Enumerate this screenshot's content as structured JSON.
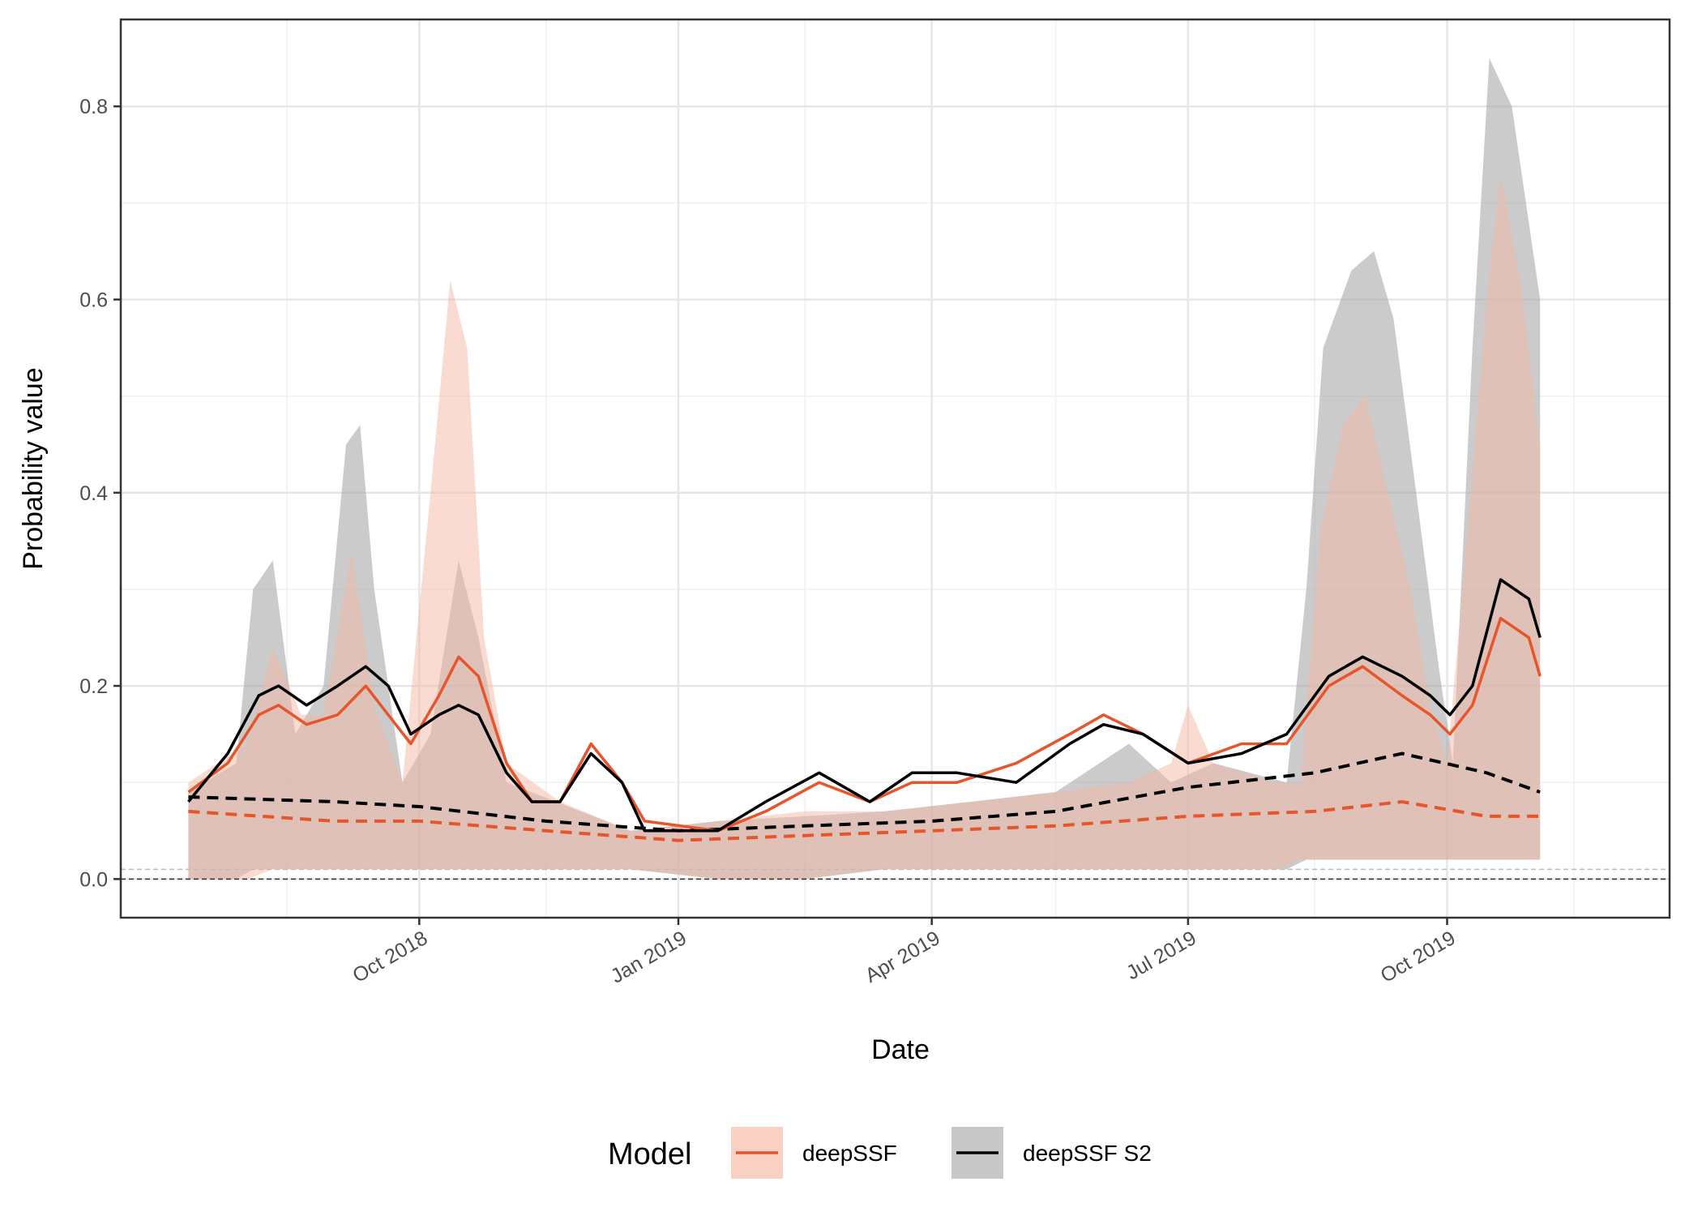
{
  "chart_data": {
    "type": "line",
    "title": "",
    "xlabel": "Date",
    "ylabel": "Probability value",
    "x_axis": {
      "type": "date",
      "range": [
        "2018-06-17",
        "2019-12-19"
      ],
      "ticks": [
        {
          "date": "2018-10-01",
          "label": "Oct 2018"
        },
        {
          "date": "2019-01-01",
          "label": "Jan 2019"
        },
        {
          "date": "2019-04-01",
          "label": "Apr 2019"
        },
        {
          "date": "2019-07-01",
          "label": "Jul 2019"
        },
        {
          "date": "2019-10-01",
          "label": "Oct 2019"
        }
      ],
      "minor_ticks": [
        "2018-08-15",
        "2018-11-15",
        "2019-02-15",
        "2019-05-15",
        "2019-08-15",
        "2019-11-15"
      ]
    },
    "y_axis": {
      "range": [
        -0.04,
        0.89
      ],
      "ticks": [
        0.0,
        0.2,
        0.4,
        0.6,
        0.8
      ],
      "tick_labels": [
        "0.0",
        "0.2",
        "0.4",
        "0.6",
        "0.8"
      ],
      "minor_ticks": [
        0.1,
        0.3,
        0.5,
        0.7
      ]
    },
    "grid": true,
    "reference_lines": [
      {
        "y": 0.0,
        "style": "dashed",
        "color": "#333333"
      },
      {
        "y": 0.01,
        "style": "dashed",
        "color": "#bbbbbb"
      }
    ],
    "legend": {
      "position": "bottom",
      "title": "Model",
      "entries": [
        {
          "label": "deepSSF",
          "line_color": "#e6552c",
          "fill_color": "#f8d0c4"
        },
        {
          "label": "deepSSF S2",
          "line_color": "#000000",
          "fill_color": "#c8c8c8"
        }
      ]
    },
    "series": [
      {
        "name": "deepSSF",
        "color": "#e6552c",
        "band_color": "#f4b8a6",
        "band": [
          {
            "x": "2018-07-11",
            "lo": 0.0,
            "hi": 0.1
          },
          {
            "x": "2018-08-01",
            "lo": 0.0,
            "hi": 0.14
          },
          {
            "x": "2018-08-10",
            "lo": 0.01,
            "hi": 0.24
          },
          {
            "x": "2018-08-20",
            "lo": 0.01,
            "hi": 0.17
          },
          {
            "x": "2018-08-28",
            "lo": 0.01,
            "hi": 0.17
          },
          {
            "x": "2018-09-07",
            "lo": 0.01,
            "hi": 0.34
          },
          {
            "x": "2018-09-15",
            "lo": 0.01,
            "hi": 0.18
          },
          {
            "x": "2018-09-25",
            "lo": 0.01,
            "hi": 0.1
          },
          {
            "x": "2018-10-05",
            "lo": 0.01,
            "hi": 0.4
          },
          {
            "x": "2018-10-12",
            "lo": 0.01,
            "hi": 0.62
          },
          {
            "x": "2018-10-18",
            "lo": 0.01,
            "hi": 0.55
          },
          {
            "x": "2018-10-24",
            "lo": 0.01,
            "hi": 0.25
          },
          {
            "x": "2018-11-01",
            "lo": 0.01,
            "hi": 0.12
          },
          {
            "x": "2018-11-20",
            "lo": 0.01,
            "hi": 0.08
          },
          {
            "x": "2018-12-15",
            "lo": 0.01,
            "hi": 0.05
          },
          {
            "x": "2019-01-15",
            "lo": 0.0,
            "hi": 0.06
          },
          {
            "x": "2019-02-15",
            "lo": 0.0,
            "hi": 0.07
          },
          {
            "x": "2019-03-15",
            "lo": 0.01,
            "hi": 0.07
          },
          {
            "x": "2019-04-15",
            "lo": 0.01,
            "hi": 0.08
          },
          {
            "x": "2019-05-15",
            "lo": 0.01,
            "hi": 0.09
          },
          {
            "x": "2019-06-10",
            "lo": 0.01,
            "hi": 0.1
          },
          {
            "x": "2019-06-25",
            "lo": 0.01,
            "hi": 0.12
          },
          {
            "x": "2019-07-01",
            "lo": 0.01,
            "hi": 0.18
          },
          {
            "x": "2019-07-10",
            "lo": 0.01,
            "hi": 0.12
          },
          {
            "x": "2019-08-01",
            "lo": 0.01,
            "hi": 0.1
          },
          {
            "x": "2019-08-10",
            "lo": 0.02,
            "hi": 0.1
          },
          {
            "x": "2019-08-17",
            "lo": 0.02,
            "hi": 0.36
          },
          {
            "x": "2019-08-25",
            "lo": 0.02,
            "hi": 0.47
          },
          {
            "x": "2019-09-02",
            "lo": 0.02,
            "hi": 0.5
          },
          {
            "x": "2019-09-10",
            "lo": 0.02,
            "hi": 0.4
          },
          {
            "x": "2019-09-18",
            "lo": 0.02,
            "hi": 0.3
          },
          {
            "x": "2019-09-25",
            "lo": 0.02,
            "hi": 0.18
          },
          {
            "x": "2019-10-01",
            "lo": 0.02,
            "hi": 0.12
          },
          {
            "x": "2019-10-08",
            "lo": 0.02,
            "hi": 0.35
          },
          {
            "x": "2019-10-15",
            "lo": 0.02,
            "hi": 0.6
          },
          {
            "x": "2019-10-20",
            "lo": 0.02,
            "hi": 0.73
          },
          {
            "x": "2019-10-27",
            "lo": 0.02,
            "hi": 0.62
          },
          {
            "x": "2019-11-03",
            "lo": 0.02,
            "hi": 0.45
          }
        ],
        "highlight_line": [
          {
            "x": "2018-07-11",
            "y": 0.09
          },
          {
            "x": "2018-07-25",
            "y": 0.12
          },
          {
            "x": "2018-08-05",
            "y": 0.17
          },
          {
            "x": "2018-08-12",
            "y": 0.18
          },
          {
            "x": "2018-08-22",
            "y": 0.16
          },
          {
            "x": "2018-09-02",
            "y": 0.17
          },
          {
            "x": "2018-09-12",
            "y": 0.2
          },
          {
            "x": "2018-09-20",
            "y": 0.17
          },
          {
            "x": "2018-09-28",
            "y": 0.14
          },
          {
            "x": "2018-10-08",
            "y": 0.19
          },
          {
            "x": "2018-10-15",
            "y": 0.23
          },
          {
            "x": "2018-10-22",
            "y": 0.21
          },
          {
            "x": "2018-11-01",
            "y": 0.12
          },
          {
            "x": "2018-11-10",
            "y": 0.08
          },
          {
            "x": "2018-11-20",
            "y": 0.08
          },
          {
            "x": "2018-12-01",
            "y": 0.14
          },
          {
            "x": "2018-12-12",
            "y": 0.1
          },
          {
            "x": "2018-12-20",
            "y": 0.06
          },
          {
            "x": "2019-01-15",
            "y": 0.05
          },
          {
            "x": "2019-02-01",
            "y": 0.07
          },
          {
            "x": "2019-02-20",
            "y": 0.1
          },
          {
            "x": "2019-03-10",
            "y": 0.08
          },
          {
            "x": "2019-03-25",
            "y": 0.1
          },
          {
            "x": "2019-04-10",
            "y": 0.1
          },
          {
            "x": "2019-05-01",
            "y": 0.12
          },
          {
            "x": "2019-05-20",
            "y": 0.15
          },
          {
            "x": "2019-06-01",
            "y": 0.17
          },
          {
            "x": "2019-06-15",
            "y": 0.15
          },
          {
            "x": "2019-07-01",
            "y": 0.12
          },
          {
            "x": "2019-07-20",
            "y": 0.14
          },
          {
            "x": "2019-08-05",
            "y": 0.14
          },
          {
            "x": "2019-08-20",
            "y": 0.2
          },
          {
            "x": "2019-09-01",
            "y": 0.22
          },
          {
            "x": "2019-09-15",
            "y": 0.19
          },
          {
            "x": "2019-09-25",
            "y": 0.17
          },
          {
            "x": "2019-10-02",
            "y": 0.15
          },
          {
            "x": "2019-10-10",
            "y": 0.18
          },
          {
            "x": "2019-10-20",
            "y": 0.27
          },
          {
            "x": "2019-10-30",
            "y": 0.25
          },
          {
            "x": "2019-11-03",
            "y": 0.21
          }
        ],
        "mean_line": [
          {
            "x": "2018-07-11",
            "y": 0.07
          },
          {
            "x": "2018-09-01",
            "y": 0.06
          },
          {
            "x": "2018-10-01",
            "y": 0.06
          },
          {
            "x": "2018-11-15",
            "y": 0.05
          },
          {
            "x": "2019-01-01",
            "y": 0.04
          },
          {
            "x": "2019-02-15",
            "y": 0.045
          },
          {
            "x": "2019-04-01",
            "y": 0.05
          },
          {
            "x": "2019-05-15",
            "y": 0.055
          },
          {
            "x": "2019-07-01",
            "y": 0.065
          },
          {
            "x": "2019-08-15",
            "y": 0.07
          },
          {
            "x": "2019-09-15",
            "y": 0.08
          },
          {
            "x": "2019-10-15",
            "y": 0.065
          },
          {
            "x": "2019-11-03",
            "y": 0.065
          }
        ]
      },
      {
        "name": "deepSSF S2",
        "color": "#000000",
        "band_color": "#a9a9a9",
        "band": [
          {
            "x": "2018-07-11",
            "lo": 0.0,
            "hi": 0.09
          },
          {
            "x": "2018-07-28",
            "lo": 0.0,
            "hi": 0.12
          },
          {
            "x": "2018-08-03",
            "lo": 0.01,
            "hi": 0.3
          },
          {
            "x": "2018-08-10",
            "lo": 0.01,
            "hi": 0.33
          },
          {
            "x": "2018-08-18",
            "lo": 0.01,
            "hi": 0.15
          },
          {
            "x": "2018-08-28",
            "lo": 0.01,
            "hi": 0.2
          },
          {
            "x": "2018-09-05",
            "lo": 0.01,
            "hi": 0.45
          },
          {
            "x": "2018-09-10",
            "lo": 0.01,
            "hi": 0.47
          },
          {
            "x": "2018-09-15",
            "lo": 0.01,
            "hi": 0.3
          },
          {
            "x": "2018-09-25",
            "lo": 0.01,
            "hi": 0.1
          },
          {
            "x": "2018-10-05",
            "lo": 0.01,
            "hi": 0.15
          },
          {
            "x": "2018-10-15",
            "lo": 0.01,
            "hi": 0.33
          },
          {
            "x": "2018-10-22",
            "lo": 0.01,
            "hi": 0.25
          },
          {
            "x": "2018-11-01",
            "lo": 0.01,
            "hi": 0.1
          },
          {
            "x": "2018-12-15",
            "lo": 0.01,
            "hi": 0.05
          },
          {
            "x": "2019-01-15",
            "lo": 0.0,
            "hi": 0.06
          },
          {
            "x": "2019-02-15",
            "lo": 0.0,
            "hi": 0.065
          },
          {
            "x": "2019-03-15",
            "lo": 0.01,
            "hi": 0.07
          },
          {
            "x": "2019-04-15",
            "lo": 0.01,
            "hi": 0.08
          },
          {
            "x": "2019-05-15",
            "lo": 0.01,
            "hi": 0.09
          },
          {
            "x": "2019-06-10",
            "lo": 0.01,
            "hi": 0.14
          },
          {
            "x": "2019-06-25",
            "lo": 0.01,
            "hi": 0.1
          },
          {
            "x": "2019-07-10",
            "lo": 0.01,
            "hi": 0.12
          },
          {
            "x": "2019-08-05",
            "lo": 0.01,
            "hi": 0.1
          },
          {
            "x": "2019-08-12",
            "lo": 0.02,
            "hi": 0.3
          },
          {
            "x": "2019-08-18",
            "lo": 0.02,
            "hi": 0.55
          },
          {
            "x": "2019-08-28",
            "lo": 0.02,
            "hi": 0.63
          },
          {
            "x": "2019-09-05",
            "lo": 0.02,
            "hi": 0.65
          },
          {
            "x": "2019-09-12",
            "lo": 0.02,
            "hi": 0.58
          },
          {
            "x": "2019-09-20",
            "lo": 0.02,
            "hi": 0.4
          },
          {
            "x": "2019-09-28",
            "lo": 0.02,
            "hi": 0.22
          },
          {
            "x": "2019-10-03",
            "lo": 0.02,
            "hi": 0.12
          },
          {
            "x": "2019-10-10",
            "lo": 0.02,
            "hi": 0.55
          },
          {
            "x": "2019-10-16",
            "lo": 0.02,
            "hi": 0.85
          },
          {
            "x": "2019-10-24",
            "lo": 0.02,
            "hi": 0.8
          },
          {
            "x": "2019-11-03",
            "lo": 0.02,
            "hi": 0.6
          }
        ],
        "highlight_line": [
          {
            "x": "2018-07-11",
            "y": 0.08
          },
          {
            "x": "2018-07-25",
            "y": 0.13
          },
          {
            "x": "2018-08-05",
            "y": 0.19
          },
          {
            "x": "2018-08-12",
            "y": 0.2
          },
          {
            "x": "2018-08-22",
            "y": 0.18
          },
          {
            "x": "2018-09-02",
            "y": 0.2
          },
          {
            "x": "2018-09-12",
            "y": 0.22
          },
          {
            "x": "2018-09-20",
            "y": 0.2
          },
          {
            "x": "2018-09-28",
            "y": 0.15
          },
          {
            "x": "2018-10-08",
            "y": 0.17
          },
          {
            "x": "2018-10-15",
            "y": 0.18
          },
          {
            "x": "2018-10-22",
            "y": 0.17
          },
          {
            "x": "2018-11-01",
            "y": 0.11
          },
          {
            "x": "2018-11-10",
            "y": 0.08
          },
          {
            "x": "2018-11-20",
            "y": 0.08
          },
          {
            "x": "2018-12-01",
            "y": 0.13
          },
          {
            "x": "2018-12-12",
            "y": 0.1
          },
          {
            "x": "2018-12-20",
            "y": 0.05
          },
          {
            "x": "2019-01-15",
            "y": 0.05
          },
          {
            "x": "2019-02-01",
            "y": 0.08
          },
          {
            "x": "2019-02-20",
            "y": 0.11
          },
          {
            "x": "2019-03-10",
            "y": 0.08
          },
          {
            "x": "2019-03-25",
            "y": 0.11
          },
          {
            "x": "2019-04-10",
            "y": 0.11
          },
          {
            "x": "2019-05-01",
            "y": 0.1
          },
          {
            "x": "2019-05-20",
            "y": 0.14
          },
          {
            "x": "2019-06-01",
            "y": 0.16
          },
          {
            "x": "2019-06-15",
            "y": 0.15
          },
          {
            "x": "2019-07-01",
            "y": 0.12
          },
          {
            "x": "2019-07-20",
            "y": 0.13
          },
          {
            "x": "2019-08-05",
            "y": 0.15
          },
          {
            "x": "2019-08-20",
            "y": 0.21
          },
          {
            "x": "2019-09-01",
            "y": 0.23
          },
          {
            "x": "2019-09-15",
            "y": 0.21
          },
          {
            "x": "2019-09-25",
            "y": 0.19
          },
          {
            "x": "2019-10-02",
            "y": 0.17
          },
          {
            "x": "2019-10-10",
            "y": 0.2
          },
          {
            "x": "2019-10-20",
            "y": 0.31
          },
          {
            "x": "2019-10-30",
            "y": 0.29
          },
          {
            "x": "2019-11-03",
            "y": 0.25
          }
        ],
        "mean_line": [
          {
            "x": "2018-07-11",
            "y": 0.085
          },
          {
            "x": "2018-09-01",
            "y": 0.08
          },
          {
            "x": "2018-10-01",
            "y": 0.075
          },
          {
            "x": "2018-11-15",
            "y": 0.06
          },
          {
            "x": "2019-01-01",
            "y": 0.05
          },
          {
            "x": "2019-02-15",
            "y": 0.055
          },
          {
            "x": "2019-04-01",
            "y": 0.06
          },
          {
            "x": "2019-05-15",
            "y": 0.07
          },
          {
            "x": "2019-07-01",
            "y": 0.095
          },
          {
            "x": "2019-08-15",
            "y": 0.11
          },
          {
            "x": "2019-09-15",
            "y": 0.13
          },
          {
            "x": "2019-10-15",
            "y": 0.11
          },
          {
            "x": "2019-11-03",
            "y": 0.09
          }
        ]
      }
    ]
  }
}
